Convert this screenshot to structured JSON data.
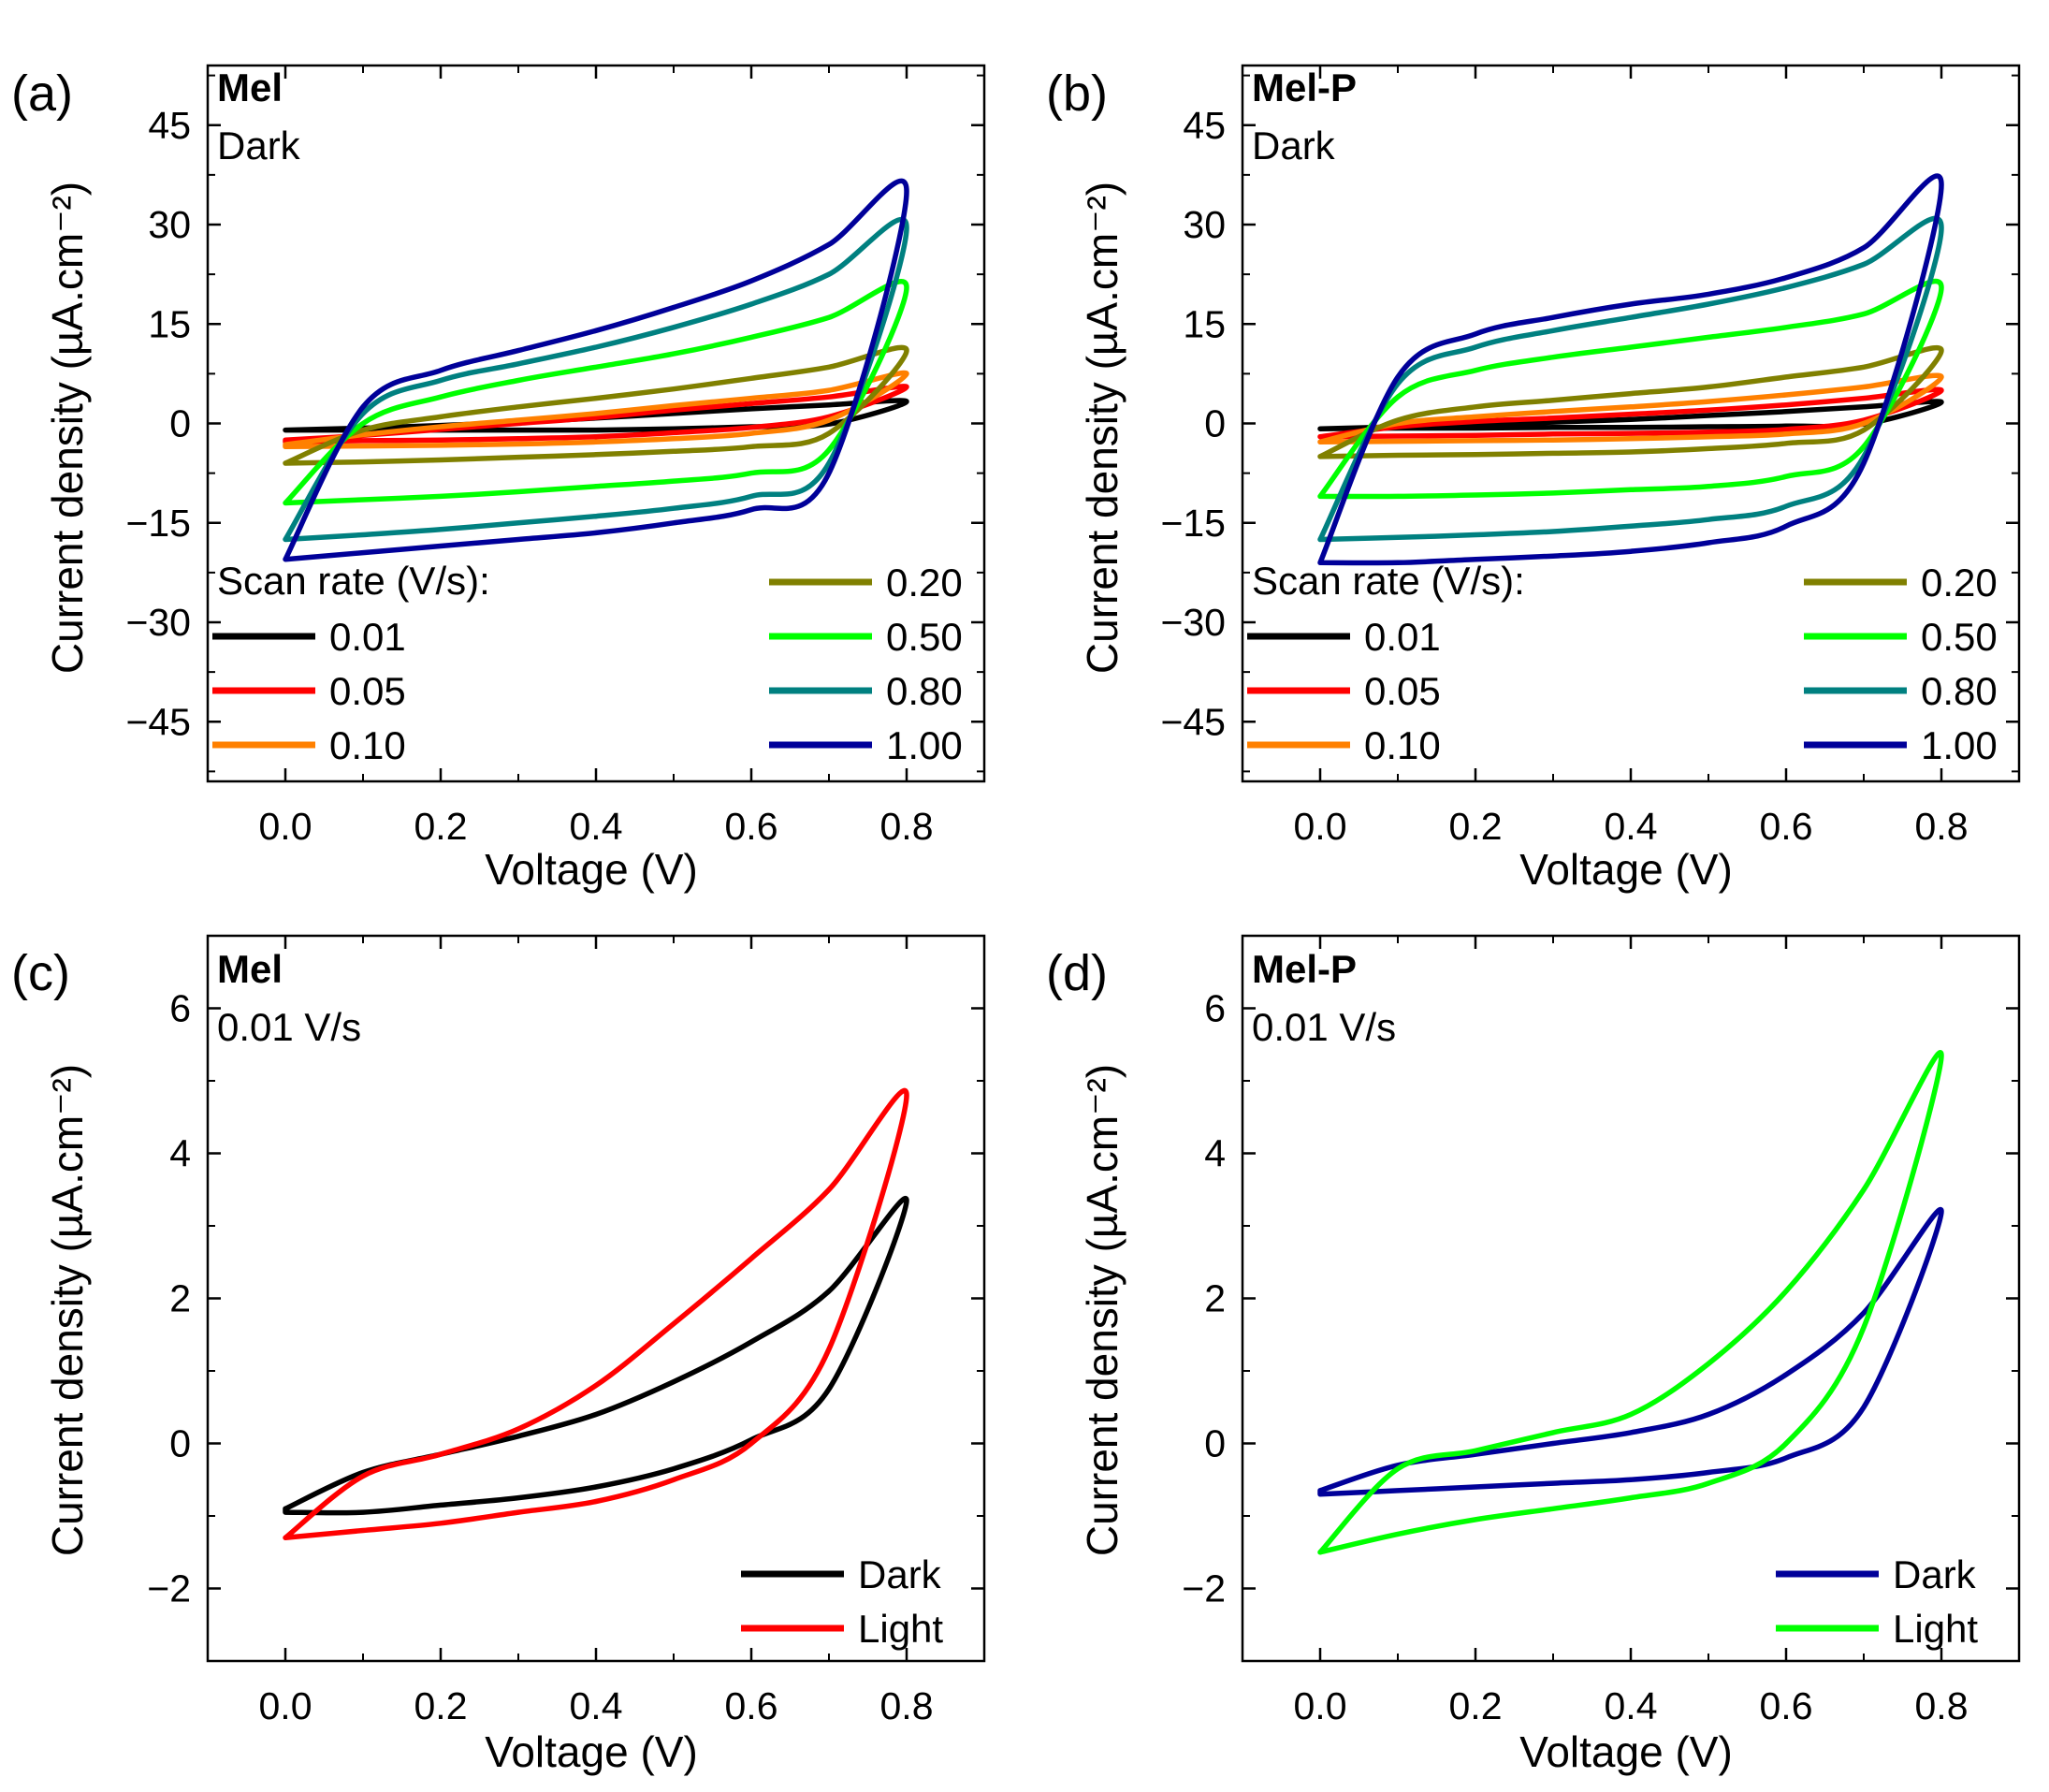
{
  "chart_data": [
    {
      "type": "line",
      "panel_label": "(a)",
      "title": "Mel",
      "subtitle": "Dark",
      "xlabel": "Voltage (V)",
      "ylabel": "Current density (µA.cm⁻²)",
      "xlim": [
        -0.1,
        0.9
      ],
      "ylim": [
        -54,
        54
      ],
      "xticks": [
        "0.0",
        "0.2",
        "0.4",
        "0.6",
        "0.8"
      ],
      "yticks": [
        "−45",
        "−30",
        "−15",
        "0",
        "15",
        "30",
        "45"
      ],
      "legend_title": "Scan rate (V/s):",
      "series": [
        {
          "name": "0.01",
          "color": "#000000",
          "x_range": [
            0.0,
            0.8
          ],
          "forward_y": [
            -1.0,
            -0.7,
            -0.3,
            0.2,
            0.8,
            1.5,
            2.2,
            2.8,
            3.3
          ],
          "reverse_y": [
            3.3,
            -0.1,
            -0.5,
            -0.8,
            -1.0,
            -1.0,
            -1.0,
            -1.0,
            -1.0
          ]
        },
        {
          "name": "0.05",
          "color": "#ff0000",
          "x_range": [
            0.0,
            0.8
          ],
          "forward_y": [
            -2.5,
            -1.8,
            -0.9,
            0.0,
            0.9,
            2.0,
            3.0,
            4.0,
            5.5
          ],
          "reverse_y": [
            5.5,
            1.0,
            -0.6,
            -1.4,
            -2.0,
            -2.3,
            -2.5,
            -2.6,
            -2.8
          ]
        },
        {
          "name": "0.10",
          "color": "#ff8000",
          "x_range": [
            0.0,
            0.8
          ],
          "forward_y": [
            -3.2,
            -1.7,
            -0.5,
            0.5,
            1.5,
            2.7,
            3.8,
            5.0,
            7.5
          ],
          "reverse_y": [
            7.5,
            0.5,
            -1.5,
            -2.3,
            -2.8,
            -3.1,
            -3.3,
            -3.4,
            -3.5
          ]
        },
        {
          "name": "0.20",
          "color": "#808000",
          "x_range": [
            0.0,
            0.8
          ],
          "forward_y": [
            -6.0,
            -1.0,
            1.0,
            2.5,
            3.8,
            5.2,
            6.8,
            8.5,
            11.0
          ],
          "reverse_y": [
            11.0,
            -1.5,
            -3.5,
            -4.2,
            -4.7,
            -5.1,
            -5.5,
            -5.8,
            -6.0
          ]
        },
        {
          "name": "0.50",
          "color": "#00ff00",
          "x_range": [
            0.0,
            0.8
          ],
          "forward_y": [
            -12.0,
            0.0,
            4.0,
            6.5,
            8.5,
            10.5,
            13.0,
            16.0,
            20.5
          ],
          "reverse_y": [
            20.5,
            -4.0,
            -7.5,
            -8.7,
            -9.5,
            -10.3,
            -11.0,
            -11.5,
            -12.0
          ]
        },
        {
          "name": "0.80",
          "color": "#008080",
          "x_range": [
            0.0,
            0.8
          ],
          "forward_y": [
            -17.5,
            1.5,
            6.5,
            9.0,
            11.5,
            14.5,
            18.0,
            22.5,
            29.5
          ],
          "reverse_y": [
            29.5,
            -6.0,
            -11.0,
            -12.8,
            -14.0,
            -15.0,
            -16.0,
            -16.8,
            -17.5
          ]
        },
        {
          "name": "1.00",
          "color": "#000099",
          "x_range": [
            0.0,
            0.8
          ],
          "forward_y": [
            -20.5,
            2.5,
            8.0,
            11.0,
            14.0,
            17.5,
            21.5,
            27.0,
            35.0
          ],
          "reverse_y": [
            35.0,
            -7.5,
            -13.0,
            -15.0,
            -16.5,
            -17.5,
            -18.5,
            -19.5,
            -20.5
          ]
        }
      ]
    },
    {
      "type": "line",
      "panel_label": "(b)",
      "title": "Mel-P",
      "subtitle": "Dark",
      "xlabel": "Voltage (V)",
      "ylabel": "Current density (µA.cm⁻²)",
      "xlim": [
        -0.1,
        0.9
      ],
      "ylim": [
        -54,
        54
      ],
      "xticks": [
        "0.0",
        "0.2",
        "0.4",
        "0.6",
        "0.8"
      ],
      "yticks": [
        "−45",
        "−30",
        "−15",
        "0",
        "15",
        "30",
        "45"
      ],
      "legend_title": "Scan rate (V/s):",
      "series": [
        {
          "name": "0.01",
          "color": "#000000",
          "x_range": [
            0.0,
            0.8
          ],
          "forward_y": [
            -0.8,
            -0.5,
            -0.2,
            0.2,
            0.6,
            1.2,
            1.8,
            2.5,
            3.2
          ],
          "reverse_y": [
            3.2,
            -0.1,
            -0.4,
            -0.5,
            -0.6,
            -0.6,
            -0.7,
            -0.7,
            -0.8
          ]
        },
        {
          "name": "0.05",
          "color": "#ff0000",
          "x_range": [
            0.0,
            0.8
          ],
          "forward_y": [
            -2.0,
            -0.5,
            0.3,
            0.8,
            1.4,
            2.0,
            2.8,
            3.8,
            5.0
          ],
          "reverse_y": [
            5.0,
            0.5,
            -0.9,
            -1.3,
            -1.5,
            -1.6,
            -1.8,
            -1.9,
            -2.0
          ]
        },
        {
          "name": "0.10",
          "color": "#ff8000",
          "x_range": [
            0.0,
            0.8
          ],
          "forward_y": [
            -2.8,
            0.0,
            1.0,
            1.8,
            2.5,
            3.3,
            4.3,
            5.5,
            7.0
          ],
          "reverse_y": [
            7.0,
            0.0,
            -1.6,
            -2.0,
            -2.3,
            -2.5,
            -2.6,
            -2.7,
            -2.8
          ]
        },
        {
          "name": "0.20",
          "color": "#808000",
          "x_range": [
            0.0,
            0.8
          ],
          "forward_y": [
            -5.0,
            0.5,
            2.5,
            3.5,
            4.5,
            5.5,
            7.0,
            8.5,
            11.0
          ],
          "reverse_y": [
            11.0,
            -1.0,
            -3.0,
            -3.8,
            -4.3,
            -4.5,
            -4.7,
            -4.8,
            -5.0
          ]
        },
        {
          "name": "0.50",
          "color": "#00ff00",
          "x_range": [
            0.0,
            0.8
          ],
          "forward_y": [
            -11.0,
            4.0,
            8.0,
            10.0,
            11.5,
            13.0,
            14.5,
            16.5,
            20.5
          ],
          "reverse_y": [
            20.5,
            -3.5,
            -8.0,
            -9.5,
            -10.0,
            -10.5,
            -10.8,
            -11.0,
            -11.0
          ]
        },
        {
          "name": "0.80",
          "color": "#008080",
          "x_range": [
            0.0,
            0.8
          ],
          "forward_y": [
            -17.5,
            6.0,
            11.5,
            14.0,
            16.0,
            18.0,
            20.5,
            24.0,
            29.5
          ],
          "reverse_y": [
            29.5,
            -5.0,
            -12.5,
            -14.5,
            -15.5,
            -16.3,
            -16.8,
            -17.2,
            -17.5
          ]
        },
        {
          "name": "1.00",
          "color": "#000099",
          "x_range": [
            0.0,
            0.8
          ],
          "forward_y": [
            -21.0,
            7.0,
            13.5,
            16.0,
            18.0,
            19.5,
            22.0,
            26.5,
            36.0
          ],
          "reverse_y": [
            36.0,
            -6.0,
            -15.5,
            -18.0,
            -19.3,
            -20.0,
            -20.5,
            -21.0,
            -21.0
          ]
        }
      ]
    },
    {
      "type": "line",
      "panel_label": "(c)",
      "title": "Mel",
      "subtitle": "0.01 V/s",
      "xlabel": "Voltage (V)",
      "ylabel": "Current density (µA.cm⁻²)",
      "xlim": [
        -0.1,
        0.9
      ],
      "ylim": [
        -3,
        7
      ],
      "xticks": [
        "0.0",
        "0.2",
        "0.4",
        "0.6",
        "0.8"
      ],
      "yticks": [
        "−2",
        "0",
        "2",
        "4",
        "6"
      ],
      "series": [
        {
          "name": "Dark",
          "color": "#000000",
          "x_range": [
            0.0,
            0.8
          ],
          "forward_y": [
            -0.9,
            -0.4,
            -0.15,
            0.1,
            0.4,
            0.85,
            1.4,
            2.1,
            3.35
          ],
          "reverse_y": [
            3.35,
            0.75,
            0.05,
            -0.35,
            -0.6,
            -0.75,
            -0.85,
            -0.95,
            -0.95
          ]
        },
        {
          "name": "Light",
          "color": "#ff0000",
          "x_range": [
            0.0,
            0.8
          ],
          "forward_y": [
            -1.3,
            -0.45,
            -0.15,
            0.2,
            0.8,
            1.65,
            2.55,
            3.5,
            4.8
          ],
          "reverse_y": [
            4.8,
            1.3,
            0.0,
            -0.5,
            -0.8,
            -0.95,
            -1.1,
            -1.2,
            -1.3
          ]
        }
      ]
    },
    {
      "type": "line",
      "panel_label": "(d)",
      "title": "Mel-P",
      "subtitle": "0.01 V/s",
      "xlabel": "Voltage (V)",
      "ylabel": "Current density (µA.cm⁻²)",
      "xlim": [
        -0.1,
        0.9
      ],
      "ylim": [
        -3,
        7
      ],
      "xticks": [
        "0.0",
        "0.2",
        "0.4",
        "0.6",
        "0.8"
      ],
      "yticks": [
        "−2",
        "0",
        "2",
        "4",
        "6"
      ],
      "series": [
        {
          "name": "Dark",
          "color": "#000099",
          "x_range": [
            0.0,
            0.8
          ],
          "forward_y": [
            -0.65,
            -0.3,
            -0.15,
            0.0,
            0.15,
            0.4,
            0.95,
            1.8,
            3.2
          ],
          "reverse_y": [
            3.2,
            0.5,
            -0.2,
            -0.4,
            -0.5,
            -0.55,
            -0.6,
            -0.65,
            -0.7
          ]
        },
        {
          "name": "Light",
          "color": "#00ff00",
          "x_range": [
            0.0,
            0.8
          ],
          "forward_y": [
            -1.5,
            -0.35,
            -0.1,
            0.15,
            0.4,
            1.1,
            2.1,
            3.5,
            5.35
          ],
          "reverse_y": [
            5.35,
            1.6,
            0.0,
            -0.55,
            -0.75,
            -0.9,
            -1.05,
            -1.25,
            -1.5
          ]
        }
      ]
    }
  ]
}
